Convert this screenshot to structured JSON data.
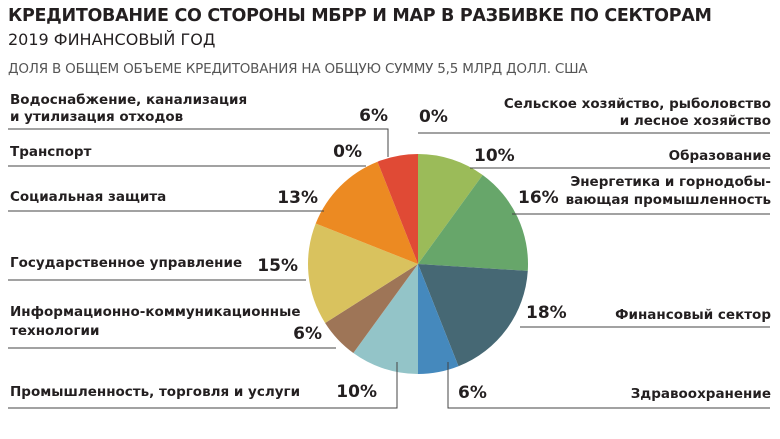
{
  "title": "КРЕДИТОВАНИЕ СО СТОРОНЫ МБРР И МАР В РАЗБИВКЕ ПО СЕКТОРАМ",
  "subtitle": "2019 ФИНАНСОВЫЙ ГОД",
  "note": "ДОЛЯ В ОБЩЕМ ОБЪЕМЕ КРЕДИТОВАНИЯ НА ОБЩУЮ СУММУ 5,5 МЛРД ДОЛЛ. США",
  "chart_data": {
    "type": "pie",
    "title": "КРЕДИТОВАНИЕ СО СТОРОНЫ МБРР И МАР В РАЗБИВКЕ ПО СЕКТОРАМ",
    "subtitle": "2019 ФИНАНСОВЫЙ ГОД",
    "total": "5,5 МЛРД ДОЛЛ. США",
    "slices": [
      {
        "label": [
          "Сельское хозяйство, рыболовство",
          "и лесное хозяйство"
        ],
        "value": 0,
        "display": "0%",
        "color": "#9bbb59"
      },
      {
        "label": [
          "Образование"
        ],
        "value": 10,
        "display": "10%",
        "color": "#9bbb59"
      },
      {
        "label": [
          "Энергетика и горнодобы-",
          "вающая промышленность"
        ],
        "value": 16,
        "display": "16%",
        "color": "#67a66a"
      },
      {
        "label": [
          "Финансовый сектор"
        ],
        "value": 18,
        "display": "18%",
        "color": "#466874"
      },
      {
        "label": [
          "Здравоохранение"
        ],
        "value": 6,
        "display": "6%",
        "color": "#4589bd"
      },
      {
        "label": [
          "Промышленность, торговля и услуги"
        ],
        "value": 10,
        "display": "10%",
        "color": "#93c4c8"
      },
      {
        "label": [
          "Информационно-коммуникационные",
          "технологии"
        ],
        "value": 6,
        "display": "6%",
        "color": "#9e7557"
      },
      {
        "label": [
          "Государственное управление"
        ],
        "value": 15,
        "display": "15%",
        "color": "#d9c25e"
      },
      {
        "label": [
          "Социальная защита"
        ],
        "value": 13,
        "display": "13%",
        "color": "#ec8a22"
      },
      {
        "label": [
          "Транспорт"
        ],
        "value": 0,
        "display": "0%",
        "color": "#ec8a22"
      },
      {
        "label": [
          "Водоснабжение, канализация",
          "и утилизация отходов"
        ],
        "value": 6,
        "display": "6%",
        "color": "#e04a35"
      }
    ]
  }
}
